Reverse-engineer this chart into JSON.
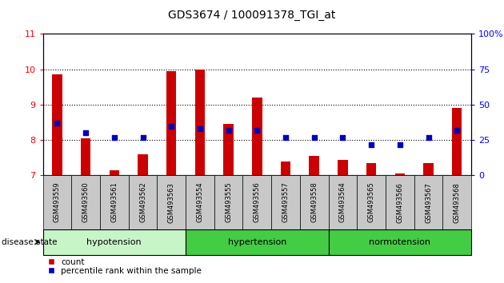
{
  "title": "GDS3674 / 100091378_TGI_at",
  "samples": [
    "GSM493559",
    "GSM493560",
    "GSM493561",
    "GSM493562",
    "GSM493563",
    "GSM493554",
    "GSM493555",
    "GSM493556",
    "GSM493557",
    "GSM493558",
    "GSM493564",
    "GSM493565",
    "GSM493566",
    "GSM493567",
    "GSM493568"
  ],
  "red_values": [
    9.85,
    8.05,
    7.15,
    7.6,
    9.95,
    10.0,
    8.45,
    9.2,
    7.4,
    7.55,
    7.45,
    7.35,
    7.05,
    7.35,
    8.9
  ],
  "blue_percentile": [
    37,
    30,
    27,
    27,
    35,
    33,
    32,
    32,
    27,
    27,
    27,
    22,
    22,
    27,
    32
  ],
  "groups": [
    {
      "name": "hypotension",
      "indices": [
        0,
        1,
        2,
        3,
        4
      ]
    },
    {
      "name": "hypertension",
      "indices": [
        5,
        6,
        7,
        8,
        9
      ]
    },
    {
      "name": "normotension",
      "indices": [
        10,
        11,
        12,
        13,
        14
      ]
    }
  ],
  "group_colors": [
    "#b8f0b8",
    "#44dd44",
    "#66ee66"
  ],
  "ylim_left": [
    7,
    11
  ],
  "ylim_right": [
    0,
    100
  ],
  "yticks_left": [
    7,
    8,
    9,
    10,
    11
  ],
  "yticks_right": [
    0,
    25,
    50,
    75,
    100
  ],
  "ytick_labels_right": [
    "0",
    "25",
    "50",
    "75",
    "100%"
  ],
  "red_color": "#cc0000",
  "blue_color": "#0000bb",
  "bar_width": 0.35,
  "dot_size": 22,
  "bg_color": "#ffffff",
  "label_bg_color": "#c8c8c8",
  "disease_state_label": "disease state",
  "legend_count": "count",
  "legend_percentile": "percentile rank within the sample",
  "title_fontsize": 10,
  "axis_fontsize": 8,
  "sample_fontsize": 6,
  "group_fontsize": 8
}
